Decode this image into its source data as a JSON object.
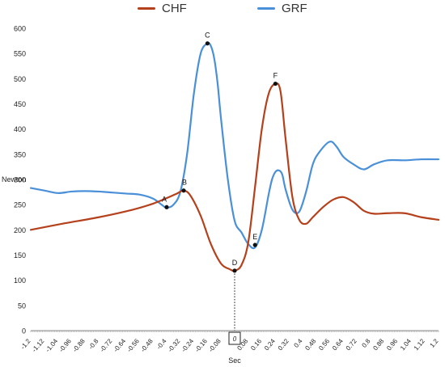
{
  "chart_data": {
    "type": "line",
    "xlabel": "Sec",
    "ylabel": "Newton",
    "xlim": [
      -1.2,
      1.2
    ],
    "ylim": [
      0,
      600
    ],
    "x_ticks": [
      "-1.2",
      "-1.12",
      "-1.04",
      "-0.96",
      "-0.88",
      "-0.8",
      "-0.72",
      "-0.64",
      "-0.56",
      "-0.48",
      "-0.4",
      "-0.32",
      "-0.24",
      "-0.16",
      "-0.08",
      "0",
      "0.08",
      "0.16",
      "0.24",
      "0.32",
      "0.4",
      "0.48",
      "0.56",
      "0.64",
      "0.72",
      "0.8",
      "0.88",
      "0.96",
      "1.04",
      "1.12",
      "1.2"
    ],
    "y_ticks": [
      0,
      50,
      100,
      150,
      200,
      250,
      300,
      350,
      400,
      450,
      500,
      550,
      600
    ],
    "legend_position": "top",
    "series": [
      {
        "name": "CHF",
        "color": "#b5401c",
        "x": [
          -1.2,
          -1.0,
          -0.8,
          -0.6,
          -0.48,
          -0.4,
          -0.34,
          -0.3,
          -0.26,
          -0.2,
          -0.14,
          -0.08,
          -0.03,
          0.0,
          0.04,
          0.08,
          0.12,
          0.16,
          0.2,
          0.24,
          0.27,
          0.3,
          0.34,
          0.38,
          0.42,
          0.46,
          0.52,
          0.58,
          0.64,
          0.7,
          0.76,
          0.82,
          0.9,
          1.0,
          1.1,
          1.2
        ],
        "values": [
          200,
          213,
          225,
          240,
          252,
          263,
          272,
          278,
          268,
          228,
          172,
          133,
          122,
          119,
          130,
          175,
          285,
          400,
          470,
          490,
          475,
          380,
          265,
          220,
          212,
          225,
          245,
          260,
          265,
          255,
          238,
          232,
          233,
          233,
          225,
          220
        ]
      },
      {
        "name": "GRF",
        "color": "#4a90d9",
        "x": [
          -1.2,
          -1.12,
          -1.04,
          -0.96,
          -0.88,
          -0.8,
          -0.72,
          -0.64,
          -0.56,
          -0.48,
          -0.43,
          -0.4,
          -0.36,
          -0.32,
          -0.28,
          -0.24,
          -0.2,
          -0.16,
          -0.14,
          -0.12,
          -0.1,
          -0.08,
          -0.04,
          0.0,
          0.04,
          0.08,
          0.12,
          0.16,
          0.2,
          0.22,
          0.24,
          0.26,
          0.28,
          0.3,
          0.34,
          0.38,
          0.42,
          0.46,
          0.5,
          0.56,
          0.6,
          0.64,
          0.7,
          0.76,
          0.82,
          0.9,
          1.0,
          1.1,
          1.2
        ],
        "values": [
          283,
          278,
          273,
          276,
          277,
          276,
          274,
          272,
          270,
          262,
          250,
          244,
          250,
          275,
          350,
          470,
          550,
          570,
          565,
          540,
          490,
          420,
          300,
          218,
          195,
          172,
          165,
          200,
          270,
          300,
          315,
          318,
          310,
          280,
          240,
          236,
          275,
          330,
          355,
          375,
          365,
          345,
          330,
          320,
          330,
          338,
          338,
          340,
          340
        ]
      }
    ],
    "annotations": [
      {
        "label": "A",
        "x": -0.4,
        "y": 245,
        "series": "GRF"
      },
      {
        "label": "B",
        "x": -0.3,
        "y": 278,
        "series": "CHF"
      },
      {
        "label": "C",
        "x": -0.16,
        "y": 570,
        "series": "GRF"
      },
      {
        "label": "D",
        "x": 0.0,
        "y": 119,
        "series": "CHF"
      },
      {
        "label": "E",
        "x": 0.12,
        "y": 170,
        "series": "GRF"
      },
      {
        "label": "F",
        "x": 0.24,
        "y": 490,
        "series": "CHF"
      }
    ],
    "zero_marker_label": "0"
  }
}
